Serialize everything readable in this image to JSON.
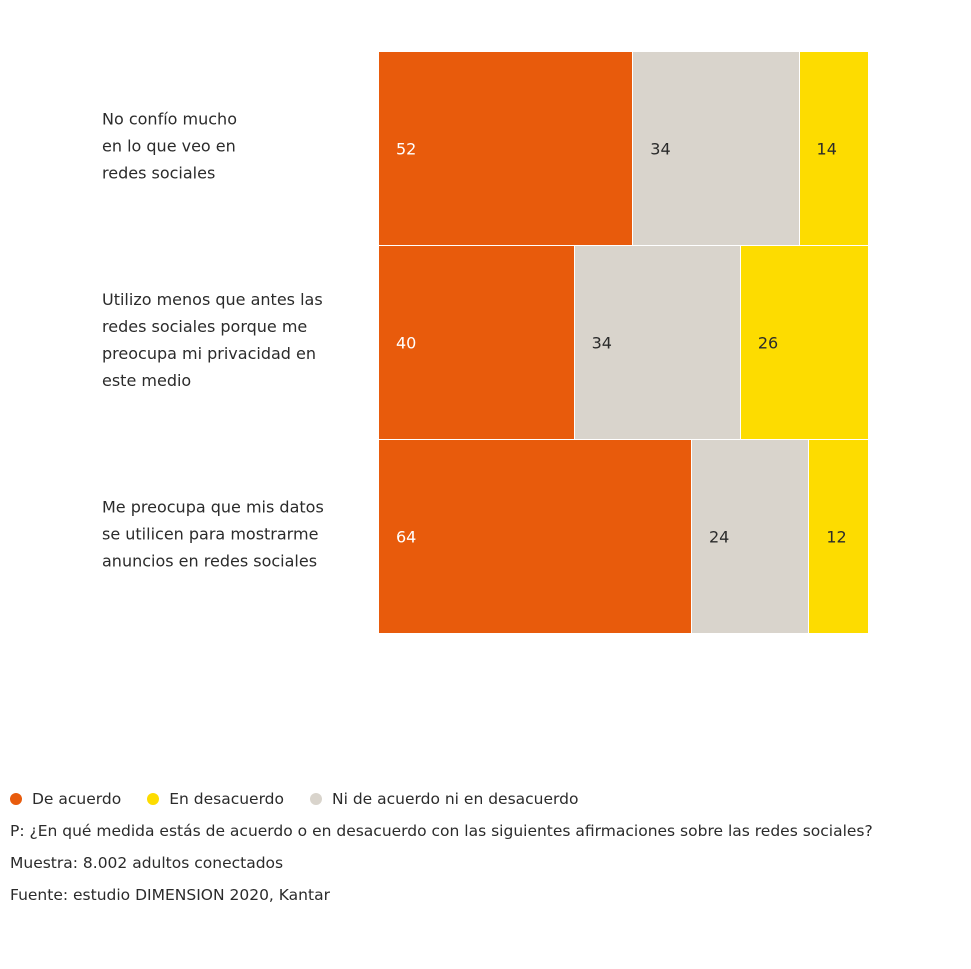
{
  "chart_data": {
    "type": "bar",
    "orientation": "horizontal-stacked-100",
    "categories": [
      [
        "No confío mucho",
        "en lo que veo en",
        "redes sociales"
      ],
      [
        "Utilizo menos que antes las",
        "redes sociales porque me",
        "preocupa mi privacidad en",
        "este medio"
      ],
      [
        "Me preocupa que mis datos",
        "se utilicen para mostrarme",
        "anuncios en redes sociales"
      ]
    ],
    "series": [
      {
        "name": "De acuerdo",
        "color": "#E85B0C",
        "text_color": "#ffffff",
        "values": [
          52,
          40,
          64
        ]
      },
      {
        "name": "Ni de acuerdo ni en desacuerdo",
        "color": "#D9D4CC",
        "text_color": "#2b2b2b",
        "values": [
          34,
          34,
          24
        ]
      },
      {
        "name": "En desacuerdo",
        "color": "#FDDC00",
        "text_color": "#2b2b2b",
        "values": [
          14,
          26,
          12
        ]
      }
    ],
    "legend_order": [
      0,
      2,
      1
    ],
    "legend_position": "bottom-left",
    "xlim": [
      0,
      100
    ],
    "grid": false
  },
  "notes": {
    "question": "P: ¿En qué medida estás de acuerdo o en desacuerdo con las siguientes afirmaciones sobre las redes sociales?",
    "sample": "Muestra: 8.002 adultos conectados",
    "source": "Fuente: estudio DIMENSION 2020, Kantar"
  }
}
